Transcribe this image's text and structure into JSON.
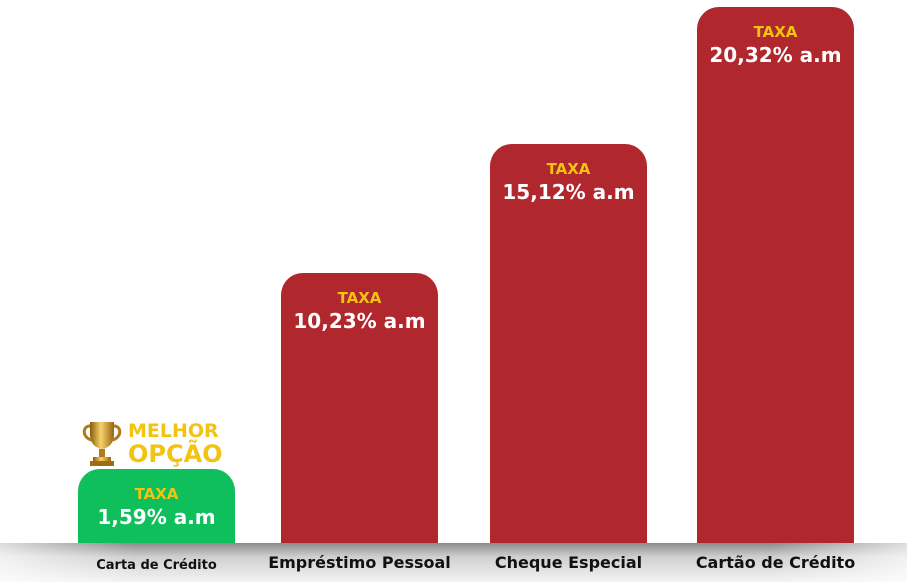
{
  "chart_data": {
    "type": "bar",
    "title": "",
    "xlabel": "",
    "ylabel": "",
    "categories": [
      "Carta de Crédito",
      "Empréstimo Pessoal",
      "Cheque Especial",
      "Cartão de Crédito"
    ],
    "values": [
      1.59,
      10.23,
      15.12,
      20.32
    ],
    "value_labels": [
      "1,59% a.m",
      "10,23% a.m",
      "15,12% a.m",
      "20,32% a.m"
    ],
    "bar_caption": "TAXA",
    "unit": "% a.m",
    "grid": false,
    "colors": [
      "#0fbf5c",
      "#b0282e",
      "#b0282e",
      "#b0282e"
    ],
    "caption_color": "#f2c311",
    "highlight": {
      "category": "Carta de Crédito",
      "line1": "MELHOR",
      "line2": "OPÇÃO",
      "icon": "trophy-icon"
    }
  }
}
